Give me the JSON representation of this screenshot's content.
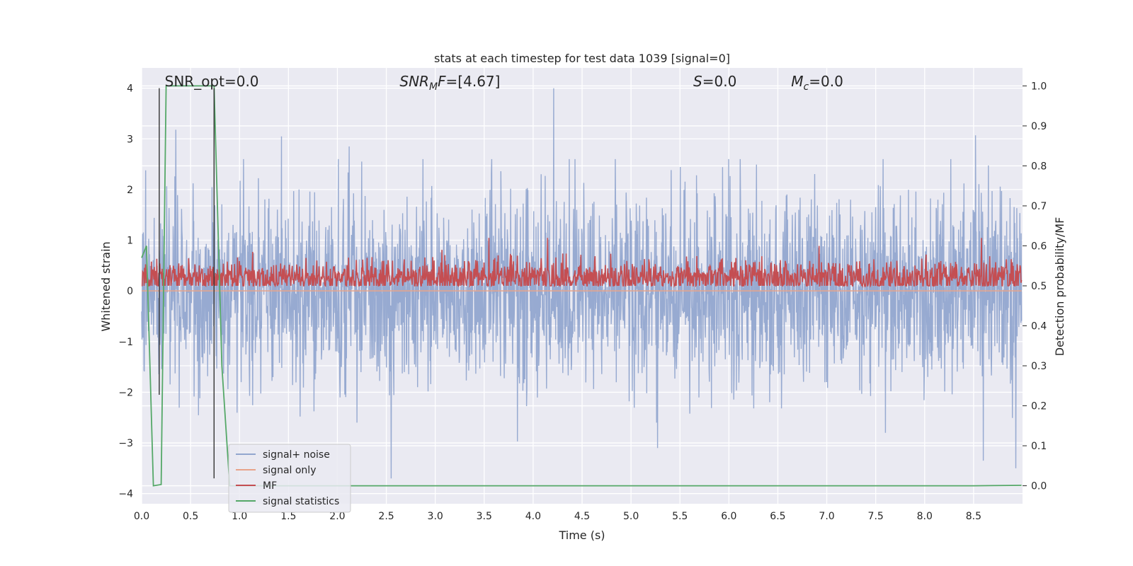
{
  "chart_data": {
    "type": "line",
    "title": "stats at each timestep for test data 1039 [signal=0]",
    "xlabel": "Time (s)",
    "ylabel": "Whitened strain",
    "y2label": "Detection probability/MF",
    "xlim": [
      0.0,
      9.0
    ],
    "ylim": [
      -4.2,
      4.4
    ],
    "y2lim": [
      -0.045,
      1.045
    ],
    "x_ticks": [
      0.0,
      0.5,
      1.0,
      1.5,
      2.0,
      2.5,
      3.0,
      3.5,
      4.0,
      4.5,
      5.0,
      5.5,
      6.0,
      6.5,
      7.0,
      7.5,
      8.0,
      8.5
    ],
    "x_tick_labels": [
      "0.0",
      "0.5",
      "1.0",
      "1.5",
      "2.0",
      "2.5",
      "3.0",
      "3.5",
      "4.0",
      "4.5",
      "5.0",
      "5.5",
      "6.0",
      "6.5",
      "7.0",
      "7.5",
      "8.0",
      "8.5"
    ],
    "y_ticks": [
      -4,
      -3,
      -2,
      -1,
      0,
      1,
      2,
      3,
      4
    ],
    "y_tick_labels": [
      "−4",
      "−3",
      "−2",
      "−1",
      "0",
      "1",
      "2",
      "3",
      "4"
    ],
    "y2_ticks": [
      0.0,
      0.1,
      0.2,
      0.3,
      0.4,
      0.5,
      0.6,
      0.7,
      0.8,
      0.9,
      1.0
    ],
    "y2_tick_labels": [
      "0.0",
      "0.1",
      "0.2",
      "0.3",
      "0.4",
      "0.5",
      "0.6",
      "0.7",
      "0.8",
      "0.9",
      "1.0"
    ],
    "grid": true,
    "legend_position": "lower-left",
    "annotations": [
      {
        "id": "snr-opt",
        "text": "SNR_opt=0.0",
        "x": 0.2
      },
      {
        "id": "snr-mf",
        "text": "SNR_MF=[4.67]",
        "x": 2.6
      },
      {
        "id": "s-val",
        "text": "S=0.0",
        "x": 5.6
      },
      {
        "id": "mc-val",
        "text": "M_c=0.0",
        "x": 6.6
      }
    ],
    "vertical_markers": [
      {
        "x": 0.18,
        "y_top": 4.0,
        "y_bottom": -2.05,
        "color": "#333333"
      },
      {
        "x": 0.74,
        "y_top": 4.0,
        "y_bottom": -3.7,
        "color": "#333333"
      }
    ],
    "series": [
      {
        "name": "signal+ noise",
        "color": "#92a6cf",
        "axis": "left",
        "description_kind": "noise",
        "amplitude_typical": 1.1,
        "peak_points": [
          [
            0.04,
            2.38
          ],
          [
            0.35,
            3.18
          ],
          [
            1.43,
            3.05
          ],
          [
            2.12,
            2.85
          ],
          [
            4.21,
            4.0
          ],
          [
            8.52,
            3.07
          ],
          [
            2.55,
            -3.7
          ],
          [
            5.27,
            -3.1
          ],
          [
            3.84,
            -2.97
          ],
          [
            7.6,
            -2.8
          ],
          [
            8.6,
            -3.35
          ],
          [
            8.93,
            -3.5
          ]
        ]
      },
      {
        "name": "signal only",
        "color": "#e8a38a",
        "axis": "left",
        "values_constant": 0.0
      },
      {
        "name": "MF",
        "color": "#c44e52",
        "axis": "right",
        "baseline": 0.52,
        "peak_points": [
          [
            3.55,
            0.62
          ],
          [
            4.15,
            0.62
          ],
          [
            8.58,
            0.62
          ],
          [
            3.07,
            0.59
          ],
          [
            6.92,
            0.6
          ]
        ]
      },
      {
        "name": "signal statistics",
        "color": "#55a868",
        "axis": "right",
        "x": [
          0.0,
          0.05,
          0.12,
          0.2,
          0.25,
          0.3,
          0.5,
          0.72,
          0.74,
          0.82,
          0.9,
          1.5,
          8.5,
          8.99
        ],
        "y": [
          0.57,
          0.6,
          0.0,
          0.003,
          1.0,
          1.0,
          1.0,
          1.0,
          1.0,
          0.3,
          0.0,
          0.0,
          0.0,
          0.001
        ]
      }
    ]
  }
}
